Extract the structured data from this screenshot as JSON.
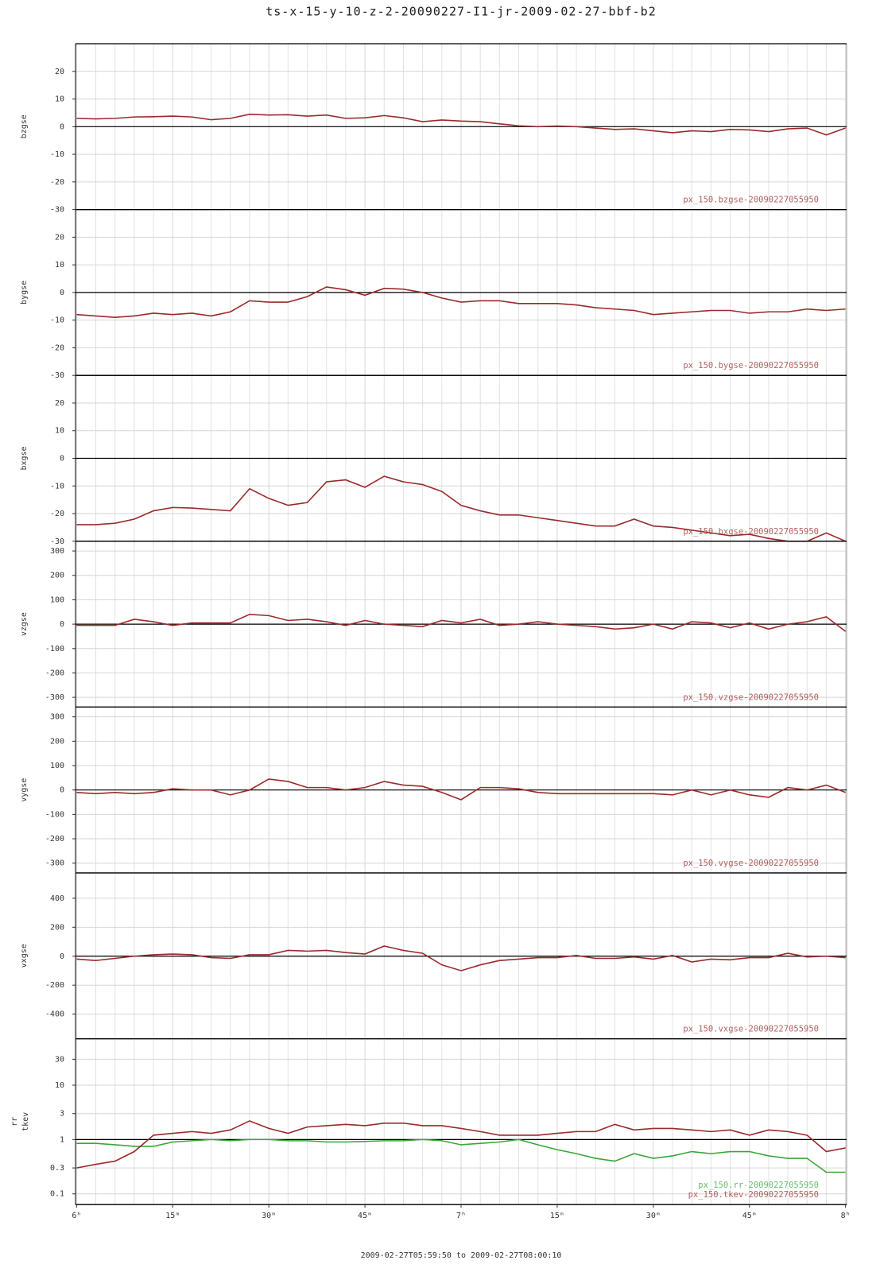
{
  "chart_data": [
    {
      "type": "line",
      "title": "ts-x-15-y-10-z-2-20090227-I1-jr-2009-02-27-bbf-b2",
      "ylabel": "bzgse",
      "xlim": [
        -0.1667,
        120.1667
      ],
      "ylim": [
        -30,
        30
      ],
      "yticks": [
        -30,
        -20,
        -10,
        0,
        10,
        20
      ],
      "hline": 0,
      "grid": true,
      "x": [
        0,
        3,
        6,
        9,
        12,
        15,
        18,
        21,
        24,
        27,
        30,
        33,
        36,
        39,
        42,
        45,
        48,
        51,
        54,
        57,
        60,
        63,
        66,
        69,
        72,
        75,
        78,
        81,
        84,
        87,
        90,
        93,
        96,
        99,
        102,
        105,
        108,
        111,
        114,
        117,
        120
      ],
      "series": [
        {
          "name": "px_150.bzgse-20090227055950",
          "color": "#9b2a2a",
          "values": [
            3,
            2.8,
            3,
            3.5,
            3.6,
            3.8,
            3.5,
            2.5,
            3,
            4.5,
            4.2,
            4.3,
            3.8,
            4.2,
            3,
            3.2,
            4,
            3.2,
            1.8,
            2.4,
            2,
            1.8,
            1,
            0.3,
            0,
            0.2,
            0,
            -0.5,
            -1,
            -0.8,
            -1.5,
            -2.2,
            -1.5,
            -1.8,
            -1,
            -1.2,
            -1.8,
            -0.8,
            -0.5,
            -3,
            -0.5
          ]
        }
      ]
    },
    {
      "type": "line",
      "ylabel": "bygse",
      "xlim": [
        -0.1667,
        120.1667
      ],
      "ylim": [
        -30,
        30
      ],
      "yticks": [
        -30,
        -20,
        -10,
        0,
        10,
        20
      ],
      "hline": 0,
      "grid": true,
      "x": [
        0,
        3,
        6,
        9,
        12,
        15,
        18,
        21,
        24,
        27,
        30,
        33,
        36,
        39,
        42,
        45,
        48,
        51,
        54,
        57,
        60,
        63,
        66,
        69,
        72,
        75,
        78,
        81,
        84,
        87,
        90,
        93,
        96,
        99,
        102,
        105,
        108,
        111,
        114,
        117,
        120
      ],
      "series": [
        {
          "name": "px_150.bygse-20090227055950",
          "color": "#9b2a2a",
          "values": [
            -8,
            -8.5,
            -9,
            -8.5,
            -7.5,
            -8,
            -7.5,
            -8.5,
            -7,
            -3,
            -3.5,
            -3.5,
            -1.5,
            2,
            1,
            -1,
            1.5,
            1.2,
            0,
            -2,
            -3.5,
            -3,
            -3,
            -4,
            -4,
            -4,
            -4.5,
            -5.5,
            -6,
            -6.5,
            -8,
            -7.5,
            -7,
            -6.5,
            -6.5,
            -7.5,
            -7,
            -7,
            -6,
            -6.5,
            -6
          ]
        }
      ]
    },
    {
      "type": "line",
      "ylabel": "bxgse",
      "xlim": [
        -0.1667,
        120.1667
      ],
      "ylim": [
        -30,
        30
      ],
      "yticks": [
        -30,
        -20,
        -10,
        0,
        10,
        20
      ],
      "hline": 0,
      "grid": true,
      "x": [
        0,
        3,
        6,
        9,
        12,
        15,
        18,
        21,
        24,
        27,
        30,
        33,
        36,
        39,
        42,
        45,
        48,
        51,
        54,
        57,
        60,
        63,
        66,
        69,
        72,
        75,
        78,
        81,
        84,
        87,
        90,
        93,
        96,
        99,
        102,
        105,
        108,
        111,
        114,
        117,
        120
      ],
      "series": [
        {
          "name": "px_150.bxgse-20090227055950",
          "color": "#9b2a2a",
          "values": [
            -24,
            -24,
            -23.5,
            -22,
            -19,
            -17.8,
            -18,
            -18.5,
            -19,
            -11,
            -14.5,
            -17,
            -16,
            -8.5,
            -7.8,
            -10.5,
            -6.5,
            -8.5,
            -9.5,
            -12,
            -17,
            -19,
            -20.5,
            -20.5,
            -21.5,
            -22.5,
            -23.5,
            -24.5,
            -24.5,
            -22,
            -24.5,
            -25,
            -26,
            -27,
            -28,
            -27.5,
            -29,
            -30,
            -30,
            -27,
            -30
          ]
        }
      ]
    },
    {
      "type": "line",
      "ylabel": "vzgse",
      "xlim": [
        -0.1667,
        120.1667
      ],
      "ylim": [
        -340,
        340
      ],
      "yticks": [
        -300,
        -200,
        -100,
        0,
        100,
        200,
        300
      ],
      "hline": 0,
      "grid": true,
      "x": [
        0,
        3,
        6,
        9,
        12,
        15,
        18,
        21,
        24,
        27,
        30,
        33,
        36,
        39,
        42,
        45,
        48,
        51,
        54,
        57,
        60,
        63,
        66,
        69,
        72,
        75,
        78,
        81,
        84,
        87,
        90,
        93,
        96,
        99,
        102,
        105,
        108,
        111,
        114,
        117,
        120
      ],
      "series": [
        {
          "name": "px_150.vzgse-20090227055950",
          "color": "#9b2a2a",
          "values": [
            -5,
            -5,
            -5,
            20,
            10,
            -5,
            5,
            5,
            5,
            40,
            35,
            15,
            20,
            10,
            -5,
            15,
            0,
            -5,
            -10,
            15,
            5,
            20,
            -5,
            0,
            10,
            0,
            -5,
            -10,
            -20,
            -15,
            0,
            -20,
            10,
            5,
            -15,
            5,
            -20,
            0,
            10,
            30,
            -30
          ]
        }
      ]
    },
    {
      "type": "line",
      "ylabel": "vygse",
      "xlim": [
        -0.1667,
        120.1667
      ],
      "ylim": [
        -340,
        340
      ],
      "yticks": [
        -300,
        -200,
        -100,
        0,
        100,
        200,
        300
      ],
      "hline": 0,
      "grid": true,
      "x": [
        0,
        3,
        6,
        9,
        12,
        15,
        18,
        21,
        24,
        27,
        30,
        33,
        36,
        39,
        42,
        45,
        48,
        51,
        54,
        57,
        60,
        63,
        66,
        69,
        72,
        75,
        78,
        81,
        84,
        87,
        90,
        93,
        96,
        99,
        102,
        105,
        108,
        111,
        114,
        117,
        120
      ],
      "series": [
        {
          "name": "px_150.vygse-20090227055950",
          "color": "#9b2a2a",
          "values": [
            -10,
            -15,
            -10,
            -15,
            -10,
            5,
            0,
            0,
            -20,
            0,
            45,
            35,
            10,
            10,
            0,
            10,
            35,
            20,
            15,
            -10,
            -40,
            10,
            10,
            5,
            -10,
            -15,
            -15,
            -15,
            -15,
            -15,
            -15,
            -20,
            0,
            -20,
            0,
            -20,
            -30,
            10,
            0,
            20,
            -10
          ]
        }
      ]
    },
    {
      "type": "line",
      "ylabel": "vxgse",
      "xlim": [
        -0.1667,
        120.1667
      ],
      "ylim": [
        -570,
        575
      ],
      "yticks": [
        -400,
        -200,
        0,
        200,
        400
      ],
      "hline": 0,
      "grid": true,
      "x": [
        0,
        3,
        6,
        9,
        12,
        15,
        18,
        21,
        24,
        27,
        30,
        33,
        36,
        39,
        42,
        45,
        48,
        51,
        54,
        57,
        60,
        63,
        66,
        69,
        72,
        75,
        78,
        81,
        84,
        87,
        90,
        93,
        96,
        99,
        102,
        105,
        108,
        111,
        114,
        117,
        120
      ],
      "series": [
        {
          "name": "px_150.vxgse-20090227055950",
          "color": "#9b2a2a",
          "values": [
            -20,
            -30,
            -15,
            0,
            10,
            15,
            10,
            -10,
            -15,
            10,
            10,
            40,
            35,
            40,
            25,
            15,
            70,
            40,
            20,
            -60,
            -100,
            -60,
            -30,
            -20,
            -10,
            -10,
            5,
            -15,
            -15,
            -5,
            -20,
            5,
            -40,
            -20,
            -25,
            -10,
            -10,
            20,
            -5,
            0,
            -10
          ]
        }
      ]
    },
    {
      "type": "line",
      "ylabel": [
        "rr",
        "tkev"
      ],
      "log": true,
      "xlim": [
        -0.1667,
        120.1667
      ],
      "ylim": [
        0.0635,
        71.5
      ],
      "yticks": [
        0.1,
        0.3,
        1,
        3,
        10,
        30
      ],
      "hline": 1,
      "grid": true,
      "xlabel": "2009-02-27T05:59:50 to 2009-02-27T08:00:10",
      "minor_divisions": 5,
      "xticks": [
        {
          "value": 0,
          "label": "6ʰ"
        },
        {
          "value": 15,
          "label": "15ᵐ"
        },
        {
          "value": 30,
          "label": "30ᵐ"
        },
        {
          "value": 45,
          "label": "45ᵐ"
        },
        {
          "value": 60,
          "label": "7ʰ"
        },
        {
          "value": 75,
          "label": "15ᵐ"
        },
        {
          "value": 90,
          "label": "30ᵐ"
        },
        {
          "value": 105,
          "label": "45ᵐ"
        },
        {
          "value": 120,
          "label": "8ʰ"
        }
      ],
      "x": [
        0,
        3,
        6,
        9,
        12,
        15,
        18,
        21,
        24,
        27,
        30,
        33,
        36,
        39,
        42,
        45,
        48,
        51,
        54,
        57,
        60,
        63,
        66,
        69,
        72,
        75,
        78,
        81,
        84,
        87,
        90,
        93,
        96,
        99,
        102,
        105,
        108,
        111,
        114,
        117,
        120
      ],
      "series": [
        {
          "name": "px_150.rr-20090227055950",
          "color": "#3aa63a",
          "values": [
            0.85,
            0.85,
            0.8,
            0.75,
            0.75,
            0.9,
            0.95,
            1,
            0.95,
            1,
            1,
            0.95,
            0.95,
            0.9,
            0.9,
            0.92,
            0.95,
            0.95,
            1,
            0.95,
            0.8,
            0.85,
            0.9,
            1,
            0.8,
            0.65,
            0.55,
            0.45,
            0.4,
            0.55,
            0.45,
            0.5,
            0.6,
            0.55,
            0.6,
            0.6,
            0.5,
            0.45,
            0.45,
            0.25,
            0.25
          ]
        },
        {
          "name": "px_150.tkev-20090227055950",
          "color": "#9b2a2a",
          "values": [
            0.3,
            0.35,
            0.4,
            0.6,
            1.2,
            1.3,
            1.4,
            1.3,
            1.5,
            2.2,
            1.6,
            1.3,
            1.7,
            1.8,
            1.9,
            1.8,
            2,
            2,
            1.8,
            1.8,
            1.6,
            1.4,
            1.2,
            1.2,
            1.2,
            1.3,
            1.4,
            1.4,
            1.9,
            1.5,
            1.6,
            1.6,
            1.5,
            1.4,
            1.5,
            1.2,
            1.5,
            1.4,
            1.2,
            0.6,
            0.7
          ]
        }
      ]
    }
  ]
}
